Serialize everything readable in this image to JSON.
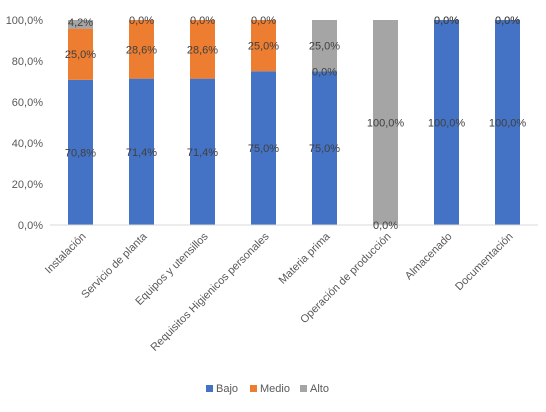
{
  "chart_data": {
    "type": "bar",
    "stacked": true,
    "title": "",
    "xlabel": "",
    "ylabel": "",
    "ylim": [
      0,
      100
    ],
    "yticks": [
      "0,0%",
      "20,0%",
      "40,0%",
      "60,0%",
      "80,0%",
      "100,0%"
    ],
    "grid": false,
    "legend_position": "bottom",
    "categories": [
      "Instalación",
      "Servicio de planta",
      "Equipos y utensillos",
      "Requisitos Higienicos personales",
      "Materia prima",
      "Operación de producción",
      "Almacenado",
      "Documentación"
    ],
    "series": [
      {
        "name": "Bajo",
        "color": "#4472C4",
        "values": [
          70.8,
          71.4,
          71.4,
          75.0,
          75.0,
          0.0,
          100.0,
          100.0
        ],
        "labels": [
          "70,8%",
          "71,4%",
          "71,4%",
          "75,0%",
          "75,0%",
          "0,0%",
          "100,0%",
          "100,0%"
        ]
      },
      {
        "name": "Medio",
        "color": "#ED7D31",
        "values": [
          25.0,
          28.6,
          28.6,
          25.0,
          0.0,
          0.0,
          0.0,
          0.0
        ],
        "labels": [
          "25,0%",
          "28,6%",
          "28,6%",
          "25,0%",
          "0,0%",
          "",
          "0,0%",
          "0,0%"
        ]
      },
      {
        "name": "Alto",
        "color": "#A5A5A5",
        "values": [
          4.2,
          0.0,
          0.0,
          0.0,
          25.0,
          100.0,
          0.0,
          0.0
        ],
        "labels": [
          "4,2%",
          "0,0%",
          "0,0%",
          "0,0%",
          "25,0%",
          "100,0%",
          "0,0%",
          "0,0%"
        ]
      }
    ]
  }
}
